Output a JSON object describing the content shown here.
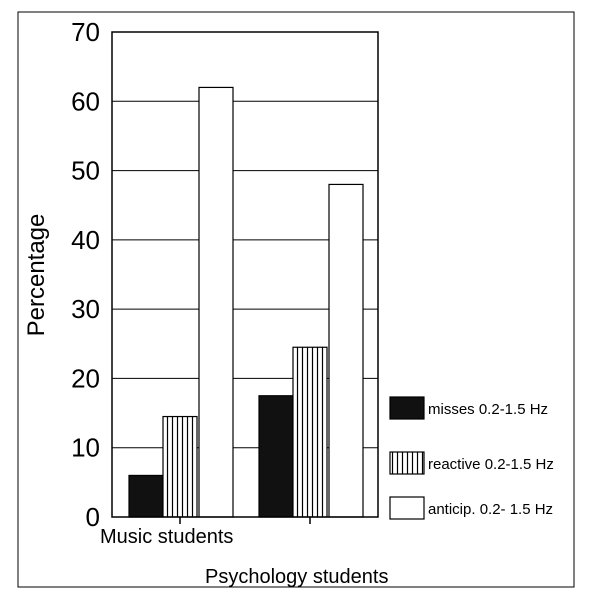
{
  "chart_data": {
    "type": "bar",
    "categories": [
      "Music students",
      "Psychology students"
    ],
    "series": [
      {
        "name": "misses 0.2-1.5 Hz",
        "values": [
          6,
          17.5
        ],
        "pattern": "solid",
        "color": "#111111"
      },
      {
        "name": "reactive 0.2-1.5 Hz",
        "values": [
          14.5,
          24.5
        ],
        "pattern": "vertical-stripes",
        "color": "#ffffff"
      },
      {
        "name": "anticip. 0.2- 1.5 Hz",
        "values": [
          62,
          48
        ],
        "pattern": "empty",
        "color": "#ffffff"
      }
    ],
    "ylabel": "Percentage",
    "xlabel": "",
    "ylim": [
      0,
      70
    ],
    "yticks": [
      0,
      10,
      20,
      30,
      40,
      50,
      60,
      70
    ],
    "grid": true,
    "legend_position": "right"
  }
}
